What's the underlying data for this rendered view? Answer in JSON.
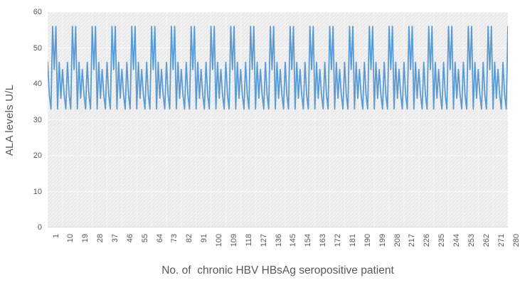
{
  "chart_data": {
    "type": "line",
    "title": "",
    "xlabel": "No. of  chronic HBV HBsAg seropositive patient",
    "ylabel": "ALA levels U/L",
    "ylim": [
      0,
      60
    ],
    "y_ticks": [
      0,
      10,
      20,
      30,
      40,
      50,
      60
    ],
    "x_tick_labels": [
      "1",
      "10",
      "19",
      "28",
      "37",
      "46",
      "55",
      "64",
      "73",
      "82",
      "91",
      "100",
      "109",
      "118",
      "127",
      "136",
      "145",
      "154",
      "163",
      "172",
      "181",
      "190",
      "199",
      "208",
      "217",
      "226",
      "235",
      "244",
      "253",
      "262",
      "271",
      "280"
    ],
    "x_range": [
      1,
      280
    ],
    "n_points": 280,
    "grid": true,
    "legend": "none",
    "series_name": "ALA levels",
    "values": [
      46,
      37,
      33,
      56,
      44,
      56,
      33,
      46,
      36,
      44,
      37,
      33,
      46,
      37,
      33,
      56,
      44,
      56,
      33,
      46,
      36,
      44,
      37,
      33,
      46,
      37,
      33,
      56,
      44,
      56,
      33,
      46,
      36,
      44,
      37,
      33,
      46,
      37,
      33,
      56,
      44,
      56,
      33,
      46,
      36,
      44,
      37,
      33,
      46,
      37,
      33,
      56,
      44,
      56,
      33,
      46,
      36,
      44,
      37,
      33,
      46,
      37,
      33,
      56,
      44,
      56,
      33,
      46,
      36,
      44,
      37,
      33,
      46,
      37,
      33,
      56,
      44,
      56,
      33,
      46,
      36,
      44,
      37,
      33,
      46,
      37,
      33,
      56,
      44,
      56,
      33,
      46,
      36,
      44,
      37,
      33,
      46,
      37,
      33,
      56,
      44,
      56,
      33,
      46,
      36,
      44,
      37,
      33,
      46,
      37,
      33,
      56,
      44,
      56,
      33,
      46,
      36,
      44,
      37,
      33,
      46,
      37,
      33,
      56,
      44,
      56,
      33,
      46,
      36,
      44,
      37,
      33,
      46,
      37,
      33,
      56,
      44,
      56,
      33,
      46,
      36,
      44,
      37,
      33,
      46,
      37,
      33,
      56,
      44,
      56,
      33,
      46,
      36,
      44,
      37,
      33,
      46,
      37,
      33,
      56,
      44,
      56,
      33,
      46,
      36,
      44,
      37,
      33,
      46,
      37,
      33,
      56,
      44,
      56,
      33,
      46,
      36,
      44,
      37,
      33,
      46,
      37,
      33,
      56,
      44,
      56,
      33,
      46,
      36,
      44,
      37,
      33,
      46,
      37,
      33,
      56,
      44,
      56,
      33,
      46,
      36,
      44,
      37,
      33,
      46,
      37,
      33,
      56,
      44,
      56,
      33,
      46,
      36,
      44,
      37,
      33,
      46,
      37,
      33,
      56,
      44,
      56,
      33,
      46,
      36,
      44,
      37,
      33,
      46,
      37,
      33,
      56,
      44,
      56,
      33,
      46,
      36,
      44,
      37,
      33,
      46,
      37,
      33,
      56,
      44,
      56,
      33,
      46,
      36,
      44,
      37,
      33,
      46,
      37,
      33,
      56,
      44,
      56,
      33,
      46,
      36,
      44,
      37,
      33,
      46,
      37,
      33,
      56,
      44,
      56,
      33,
      46,
      36,
      44,
      37,
      33,
      46,
      37,
      33,
      56
    ],
    "colors": {
      "line": "#5B9BD5",
      "plot_background": "#e9e9e9",
      "hatch": "#f6f6f6",
      "gridline": "#fafafa",
      "axis_line": "#d9d9d9",
      "text": "#595959"
    }
  },
  "layout_labels": {
    "plot_area_name": "plot-area"
  }
}
